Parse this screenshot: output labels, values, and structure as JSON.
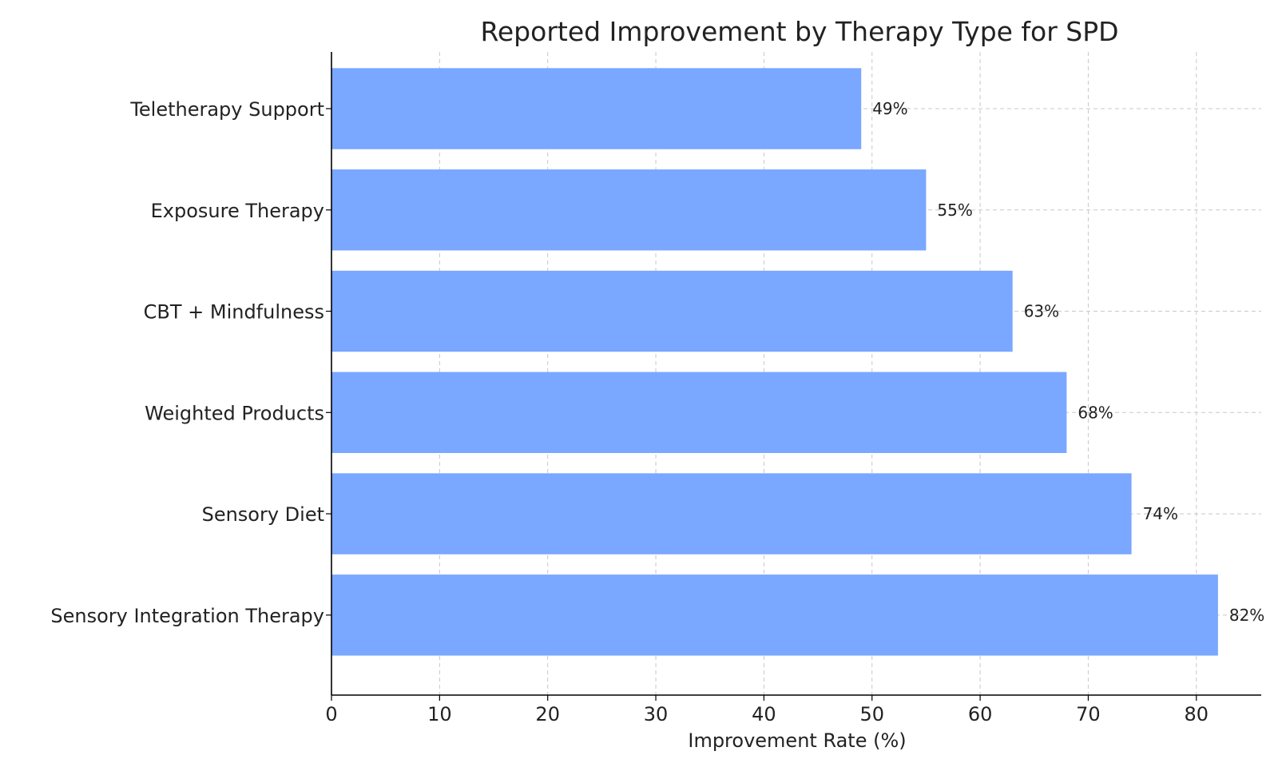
{
  "chart_data": {
    "type": "bar",
    "orientation": "horizontal",
    "title": "Reported Improvement by Therapy Type for SPD",
    "xlabel": "Improvement Rate (%)",
    "ylabel": "",
    "categories": [
      "Sensory Integration Therapy",
      "Sensory Diet",
      "Weighted Products",
      "CBT + Mindfulness",
      "Exposure Therapy",
      "Teletherapy Support"
    ],
    "values": [
      82,
      74,
      68,
      63,
      55,
      49
    ],
    "data_labels": [
      "82%",
      "74%",
      "68%",
      "63%",
      "55%",
      "49%"
    ],
    "xlim": [
      0,
      86
    ],
    "xticks": [
      0,
      10,
      20,
      30,
      40,
      50,
      60,
      70,
      80
    ],
    "xtick_labels": [
      "0",
      "10",
      "20",
      "30",
      "40",
      "50",
      "60",
      "70",
      "80"
    ],
    "grid": true,
    "bar_color": "#7aa7ff",
    "grid_color": "#c8c8c8",
    "axis_color": "#000000"
  }
}
